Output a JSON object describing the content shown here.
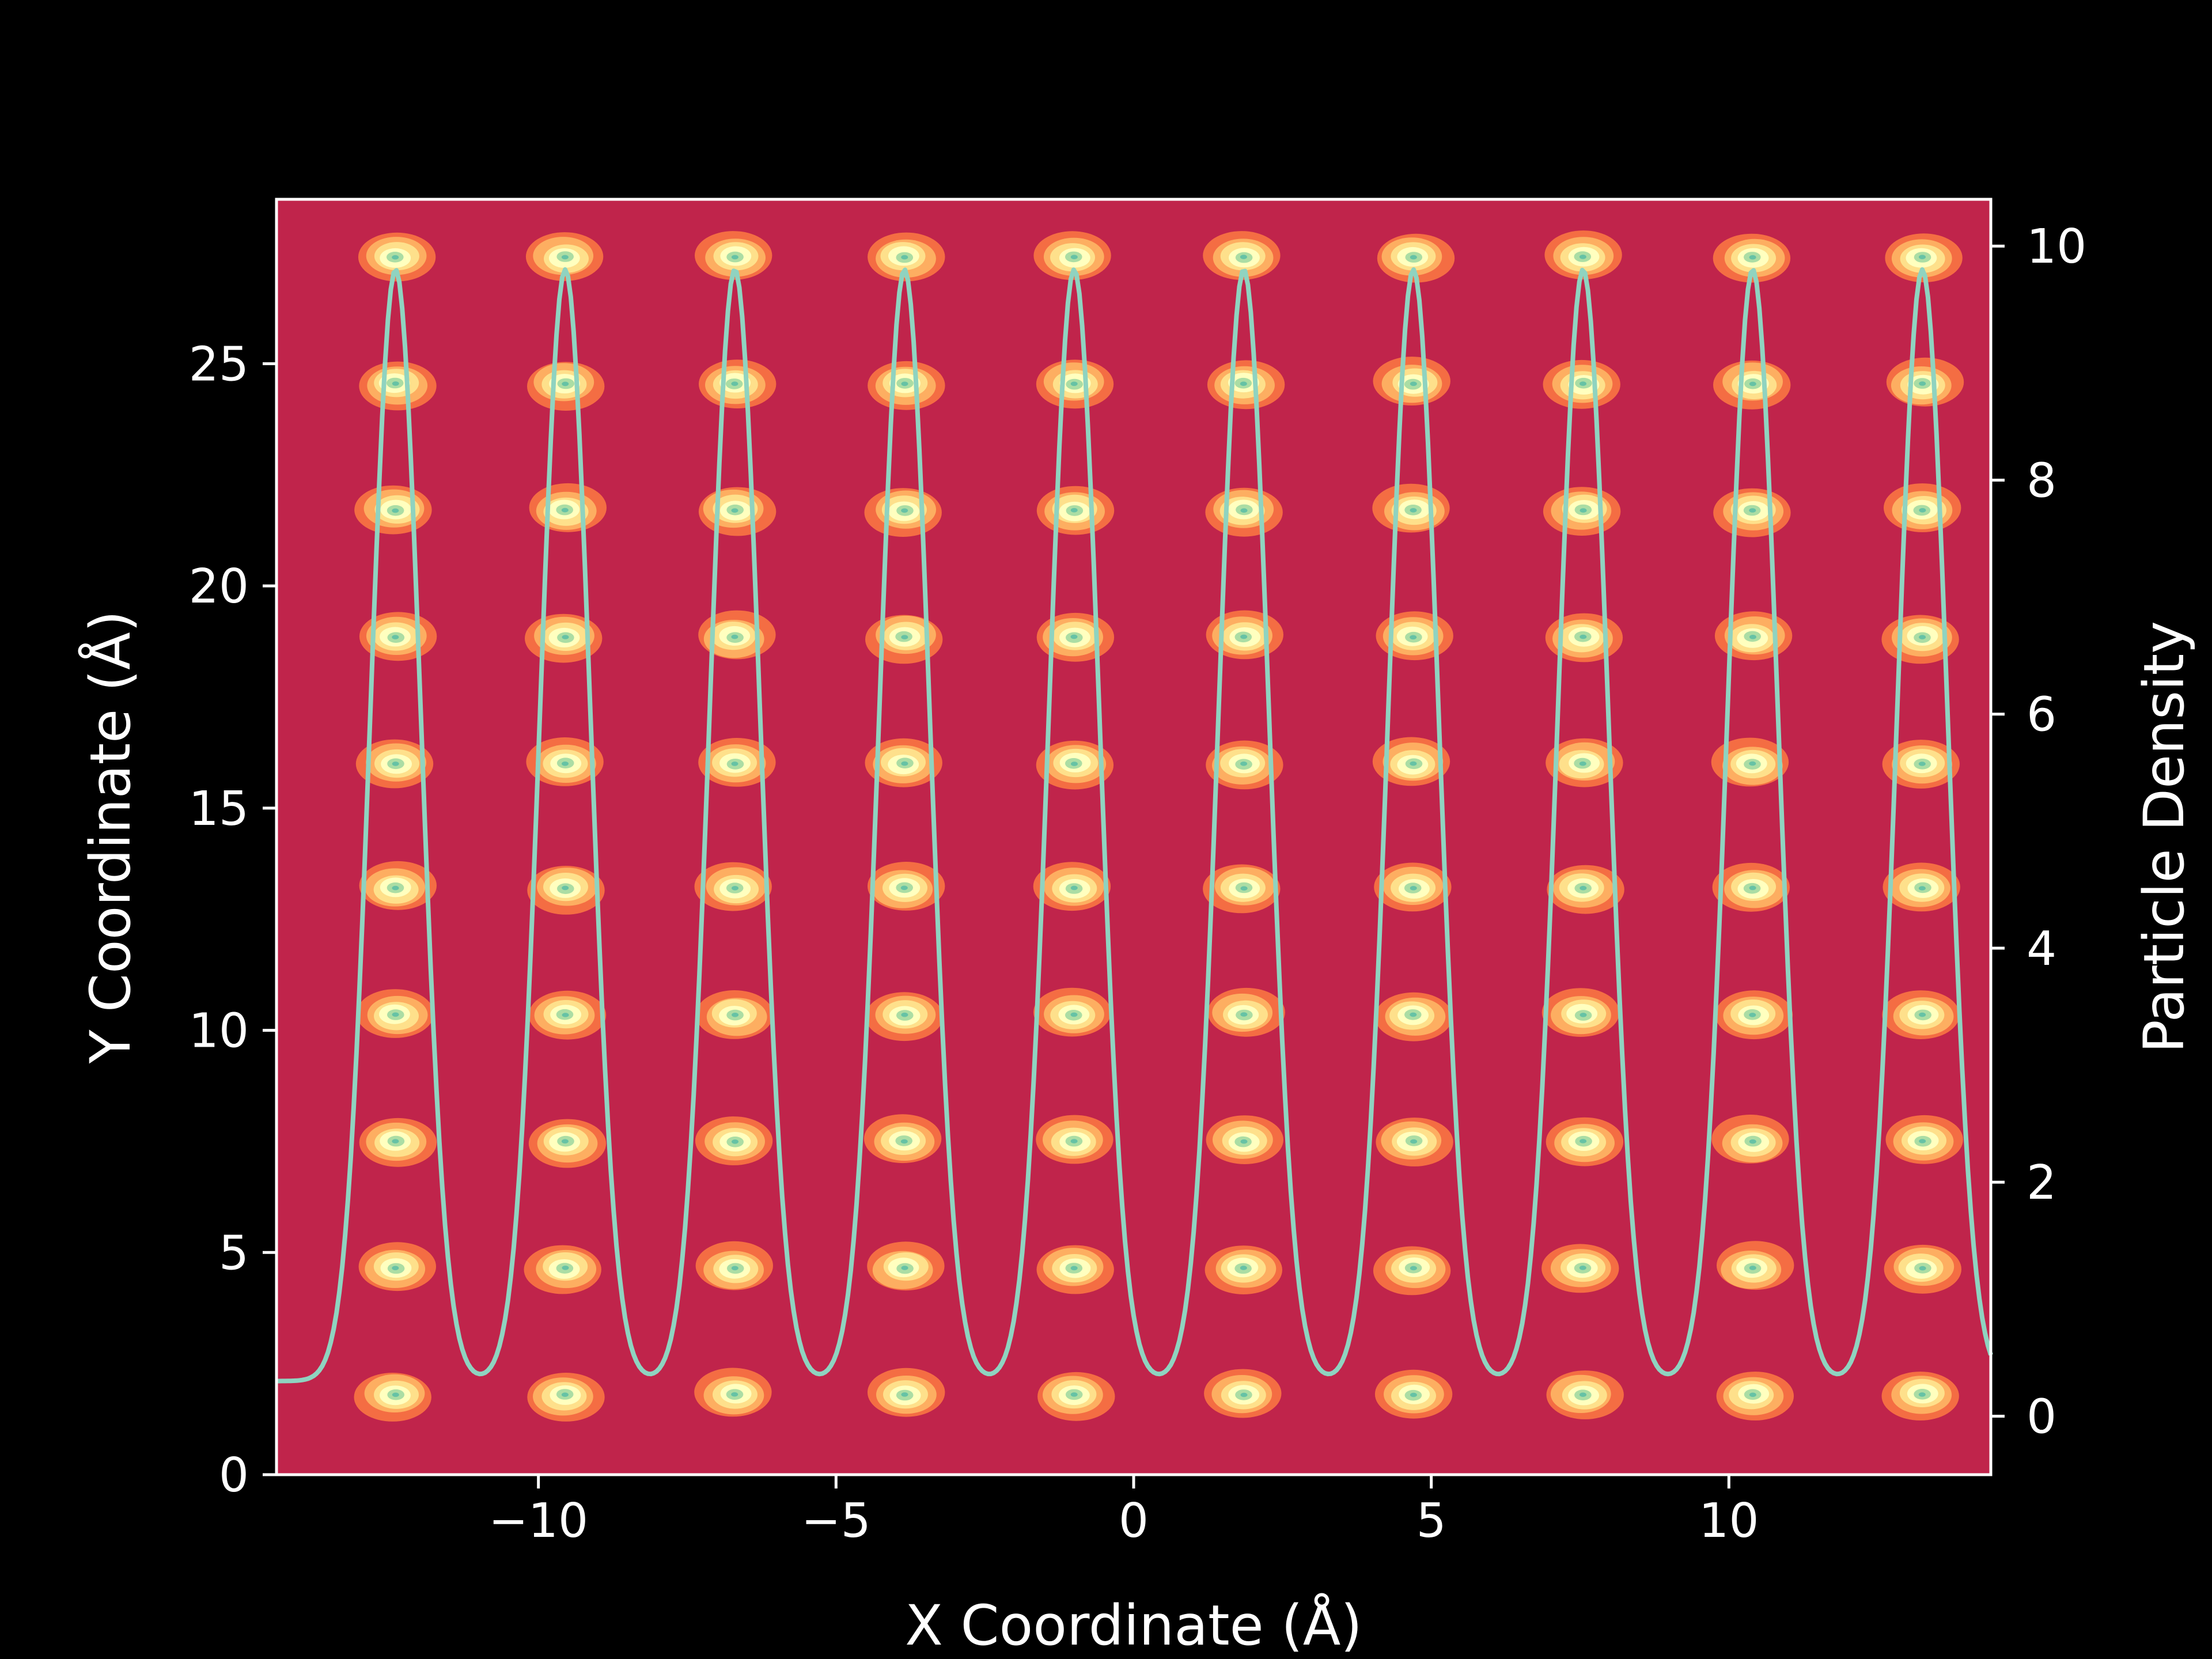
{
  "chart_data": {
    "type": "contour+line",
    "title": "",
    "xlabel": "X Coordinate (Å)",
    "ylabel": "Y Coordinate (Å)",
    "y2label": "Particle Density",
    "xlim": [
      -14.4,
      14.4
    ],
    "ylim": [
      0,
      28.7
    ],
    "y2lim": [
      -0.5,
      10.4
    ],
    "xticks": [
      -10,
      -5,
      0,
      5,
      10
    ],
    "xtick_labels": [
      "−10",
      "−5",
      "0",
      "5",
      "10"
    ],
    "yticks": [
      0,
      5,
      10,
      15,
      20,
      25
    ],
    "ytick_labels": [
      "0",
      "5",
      "10",
      "15",
      "20",
      "25"
    ],
    "y2ticks": [
      0,
      2,
      4,
      6,
      8,
      10
    ],
    "y2tick_labels": [
      "0",
      "2",
      "4",
      "6",
      "8",
      "10"
    ],
    "lattice": {
      "x_positions": [
        -12.4,
        -9.55,
        -6.7,
        -3.85,
        -1.0,
        1.85,
        4.7,
        7.55,
        10.4,
        13.25
      ],
      "y_positions": [
        1.8,
        4.65,
        7.5,
        10.35,
        13.2,
        16.0,
        18.85,
        21.7,
        24.55,
        27.4
      ],
      "spot_radius_x": 0.65,
      "spot_radius_y": 0.55,
      "contour_levels": [
        {
          "scale": 1.0,
          "color": "#f46d43"
        },
        {
          "scale": 0.78,
          "color": "#fdae61"
        },
        {
          "scale": 0.58,
          "color": "#fee08b"
        },
        {
          "scale": 0.4,
          "color": "#ffffbf"
        },
        {
          "scale": 0.22,
          "color": "#abdda4"
        },
        {
          "scale": 0.09,
          "color": "#66c2a5"
        }
      ]
    },
    "density_profile": {
      "peaks_x": [
        -12.4,
        -9.55,
        -6.7,
        -3.85,
        -1.0,
        1.85,
        4.7,
        7.55,
        10.4,
        13.25
      ],
      "peak_height": 9.8,
      "baseline": 0.3,
      "peak_sigma": 0.42
    },
    "colors": {
      "background": "#c0244b",
      "density_line": "#8fd3c0",
      "axes": "#ffffff",
      "figure": "#000000"
    }
  }
}
